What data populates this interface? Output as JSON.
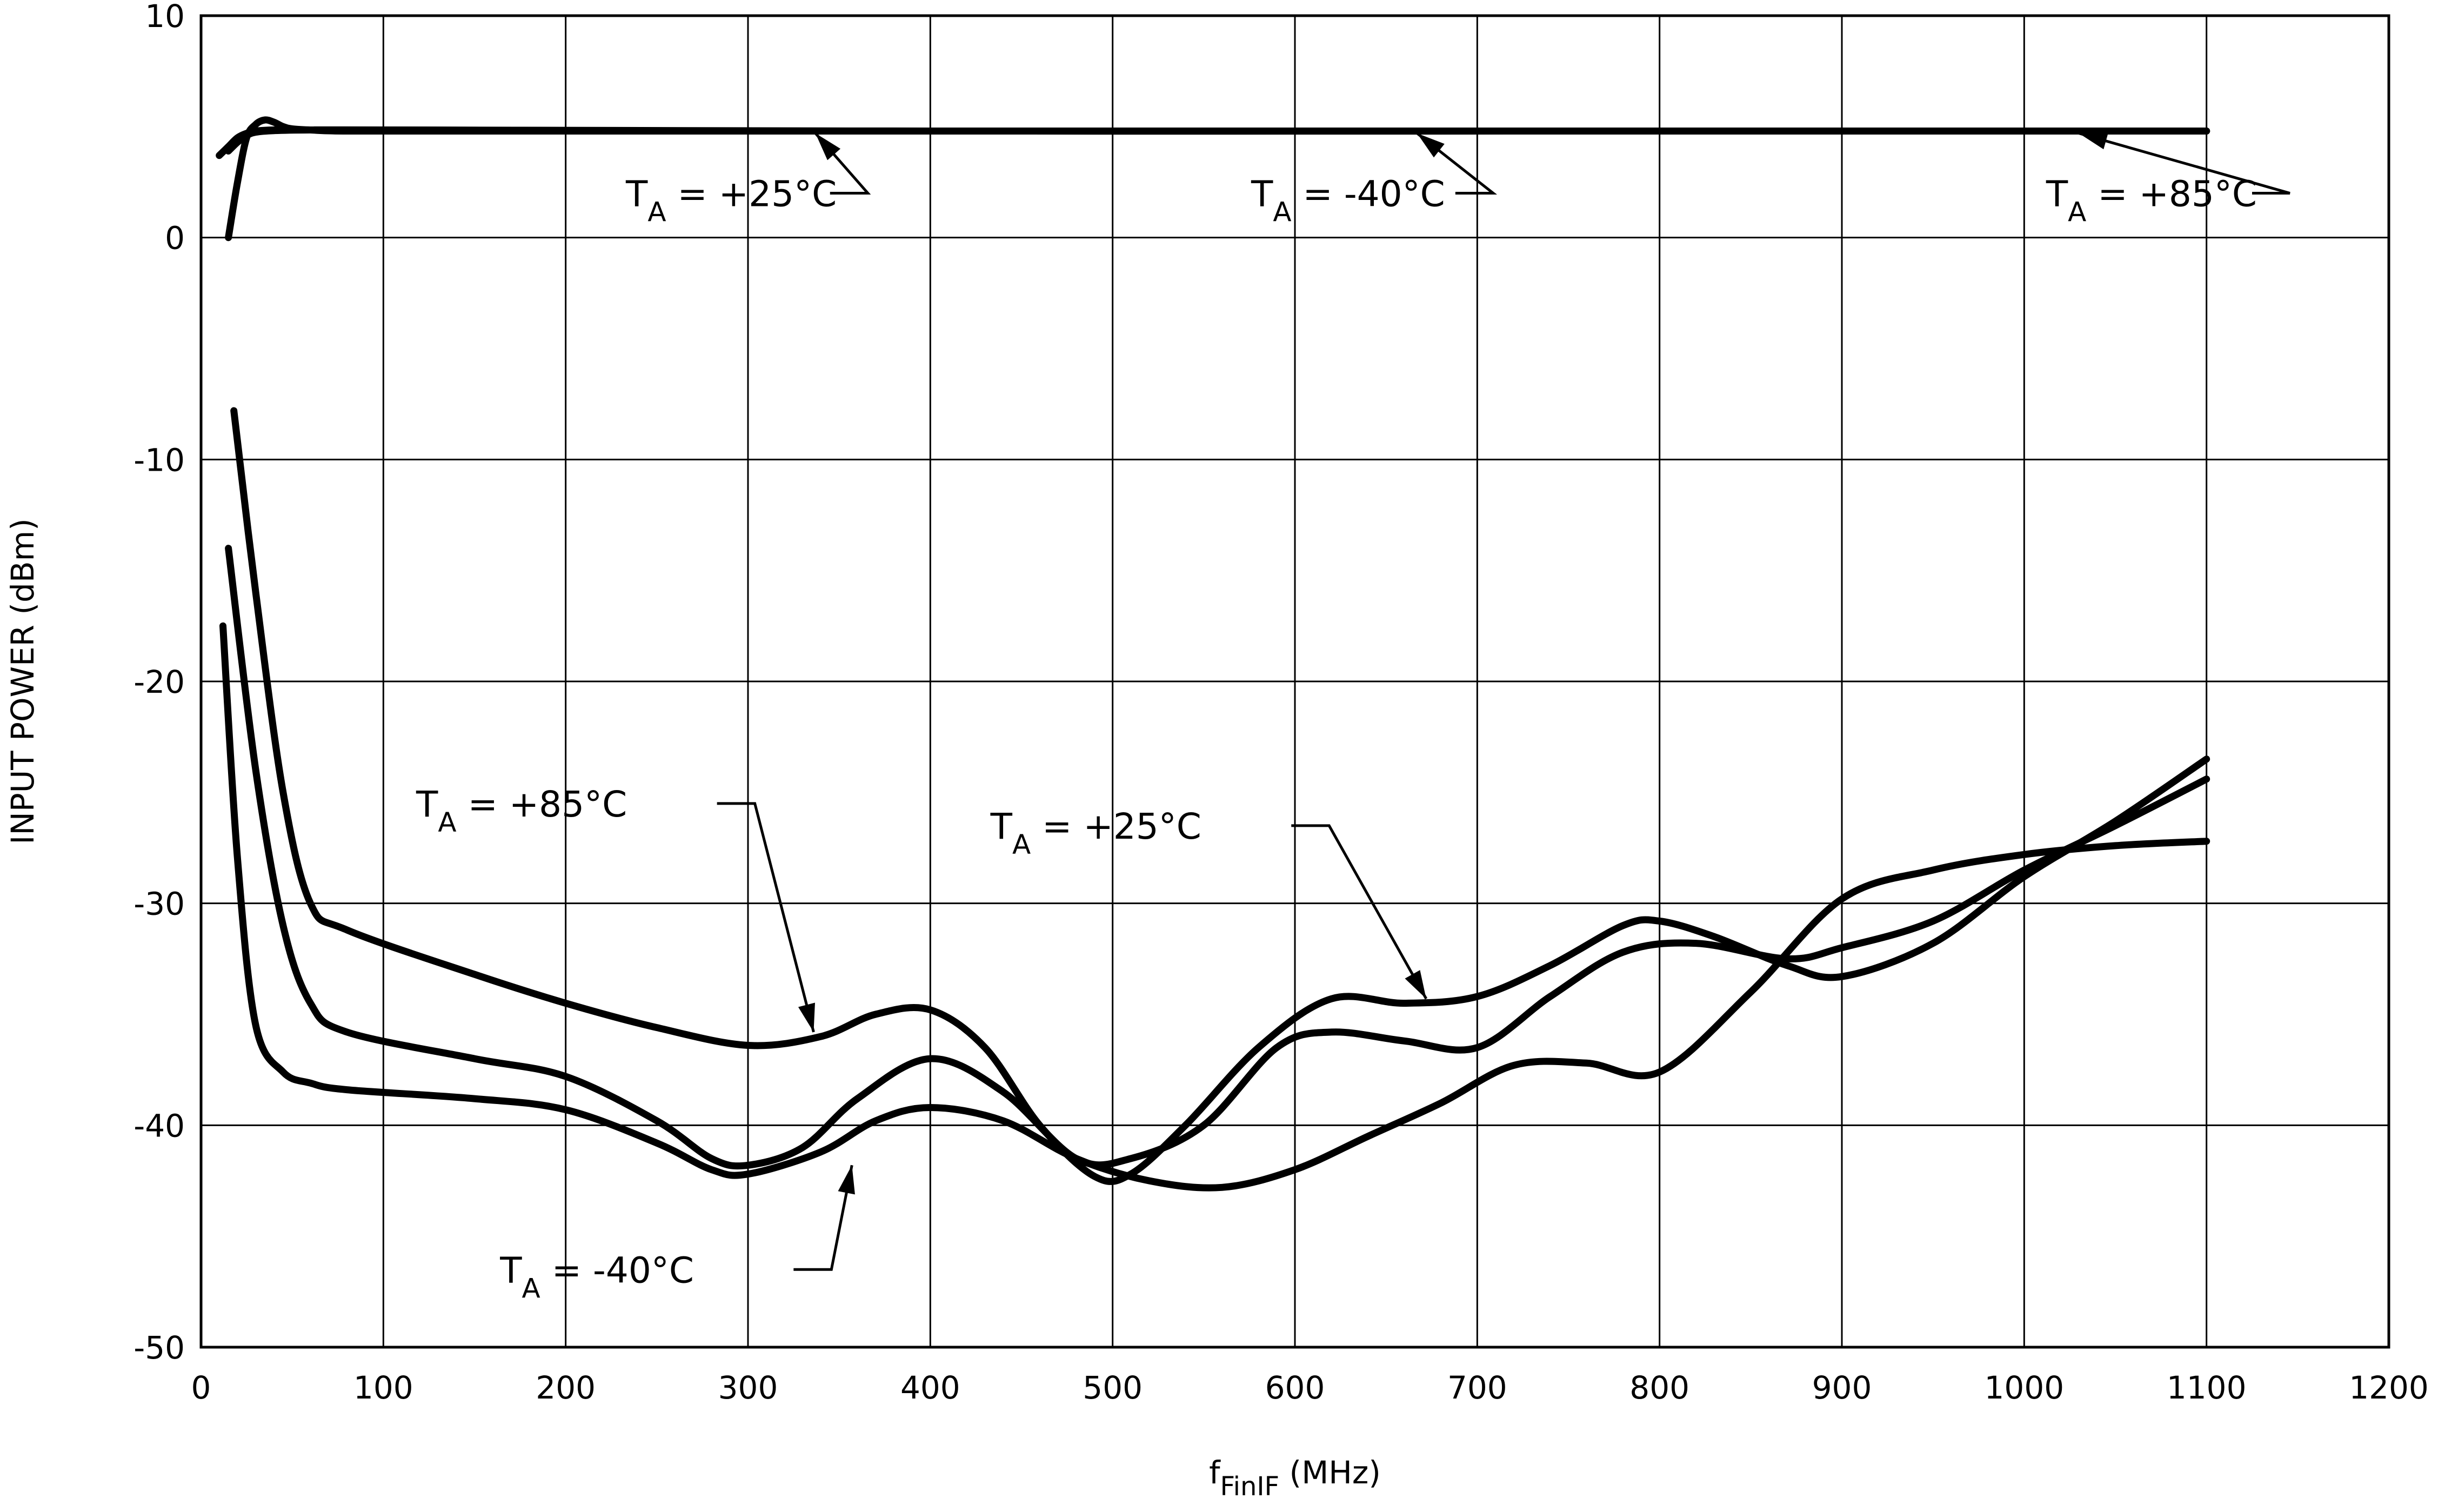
{
  "chart_data": {
    "type": "line",
    "title": "",
    "xlabel": {
      "main": "f",
      "sub": "FinIF",
      "units": " (MHz)"
    },
    "ylabel": "INPUT POWER (dBm)",
    "xlim": [
      0,
      1200
    ],
    "ylim": [
      -50,
      10
    ],
    "x_ticks": [
      0,
      100,
      200,
      300,
      400,
      500,
      600,
      700,
      800,
      900,
      1000,
      1100,
      1200
    ],
    "y_ticks": [
      10,
      0,
      -10,
      -20,
      -30,
      -40,
      -50
    ],
    "x_tick_labels": [
      "0",
      "100",
      "200",
      "300",
      "400",
      "500",
      "600",
      "700",
      "800",
      "900",
      "1000",
      "1100",
      "1200"
    ],
    "y_tick_labels": [
      "10",
      "0",
      "-10",
      "-20",
      "-30",
      "-40",
      "-50"
    ],
    "grid": true,
    "series": [
      {
        "id": "upper_p25",
        "x": [
          15,
          20,
          25,
          30,
          35,
          40,
          45,
          50,
          60,
          80,
          150,
          300,
          600,
          1100
        ],
        "y": [
          0,
          2.5,
          4.5,
          5.1,
          5.3,
          5.2,
          5.0,
          4.9,
          4.85,
          4.8,
          4.8,
          4.8,
          4.8,
          4.8
        ]
      },
      {
        "id": "upper_m40",
        "x": [
          10,
          15,
          20,
          25,
          30,
          40,
          60,
          100,
          300,
          700,
          1100
        ],
        "y": [
          3.7,
          4.1,
          4.5,
          4.7,
          4.8,
          4.85,
          4.85,
          4.85,
          4.8,
          4.8,
          4.8
        ]
      },
      {
        "id": "upper_p85",
        "x": [
          15,
          20,
          25,
          30,
          40,
          60,
          100,
          400,
          800,
          1100
        ],
        "y": [
          3.9,
          4.3,
          4.6,
          4.75,
          4.82,
          4.85,
          4.85,
          4.8,
          4.8,
          4.8
        ]
      },
      {
        "id": "lower_p85",
        "x": [
          18,
          30,
          45,
          60,
          80,
          150,
          200,
          250,
          300,
          340,
          370,
          400,
          430,
          460,
          490,
          510,
          540,
          580,
          620,
          660,
          700,
          740,
          780,
          800,
          830,
          870,
          900,
          950,
          1000,
          1050,
          1100
        ],
        "y": [
          -7.8,
          -16,
          -25,
          -30,
          -31.2,
          -33.2,
          -34.5,
          -35.6,
          -36.4,
          -36.0,
          -35.0,
          -34.8,
          -36.5,
          -40.0,
          -42.3,
          -42.2,
          -40.0,
          -36.5,
          -34.3,
          -34.5,
          -34.2,
          -32.8,
          -31.0,
          -30.8,
          -31.5,
          -32.8,
          -33.3,
          -31.8,
          -28.8,
          -26.3,
          -23.5
        ]
      },
      {
        "id": "lower_p25",
        "x": [
          15,
          30,
          45,
          60,
          80,
          150,
          200,
          250,
          280,
          300,
          330,
          360,
          400,
          440,
          480,
          510,
          550,
          590,
          620,
          660,
          700,
          740,
          780,
          820,
          870,
          900,
          950,
          1000,
          1050,
          1100
        ],
        "y": [
          -14,
          -24,
          -31,
          -34.5,
          -35.8,
          -37,
          -37.8,
          -39.8,
          -41.5,
          -41.8,
          -41.0,
          -38.8,
          -37.0,
          -38.5,
          -41.5,
          -41.5,
          -40.0,
          -36.5,
          -35.8,
          -36.2,
          -36.5,
          -34.2,
          -32.2,
          -31.8,
          -32.5,
          -32.0,
          -30.8,
          -28.5,
          -26.5,
          -24.4
        ]
      },
      {
        "id": "lower_m40",
        "x": [
          12,
          20,
          30,
          45,
          60,
          80,
          150,
          200,
          250,
          280,
          300,
          340,
          370,
          400,
          440,
          480,
          520,
          560,
          600,
          640,
          680,
          720,
          760,
          800,
          850,
          900,
          950,
          1000,
          1050,
          1100
        ],
        "y": [
          -17.5,
          -28,
          -35.5,
          -37.6,
          -38.1,
          -38.4,
          -38.8,
          -39.3,
          -40.8,
          -42.0,
          -42.2,
          -41.2,
          -39.8,
          -39.2,
          -39.8,
          -41.5,
          -42.5,
          -42.8,
          -42.0,
          -40.5,
          -39.0,
          -37.3,
          -37.2,
          -37.6,
          -34.0,
          -29.8,
          -28.5,
          -27.8,
          -27.4,
          -27.2
        ]
      }
    ],
    "annotations": [
      {
        "id": "ann-top-p25",
        "t": "T",
        "sub": "A",
        "rest": " = +25°C",
        "text_x": 233,
        "text_y": 2,
        "tail": [
          345,
          2
        ],
        "tip": [
          337,
          4.7
        ]
      },
      {
        "id": "ann-top-m40",
        "t": "T",
        "sub": "A",
        "rest": " = -40°C",
        "text_x": 576,
        "text_y": 2,
        "tail": [
          688,
          2
        ],
        "tip": [
          667,
          4.7
        ]
      },
      {
        "id": "ann-top-p85",
        "t": "T",
        "sub": "A",
        "rest": " = +85°C",
        "text_x": 1012,
        "text_y": 2,
        "tail": [
          1125,
          2
        ],
        "tip": [
          1030,
          4.7
        ]
      },
      {
        "id": "ann-low-p85",
        "t": "T",
        "sub": "A",
        "rest": " = +85°C",
        "text_x": 118,
        "text_y": -25.5,
        "tail": [
          283,
          -25.5
        ],
        "tip": [
          336,
          -35.8
        ]
      },
      {
        "id": "ann-low-p25",
        "t": "T",
        "sub": "A",
        "rest": " = +25°C",
        "text_x": 433,
        "text_y": -26.5,
        "tail": [
          598,
          -26.5
        ],
        "tip": [
          672,
          -34.3
        ]
      },
      {
        "id": "ann-low-m40",
        "t": "T",
        "sub": "A",
        "rest": " = -40°C",
        "text_x": 164,
        "text_y": -46.5,
        "tail": [
          325,
          -46.5
        ],
        "tip": [
          357,
          -41.8
        ]
      }
    ]
  }
}
